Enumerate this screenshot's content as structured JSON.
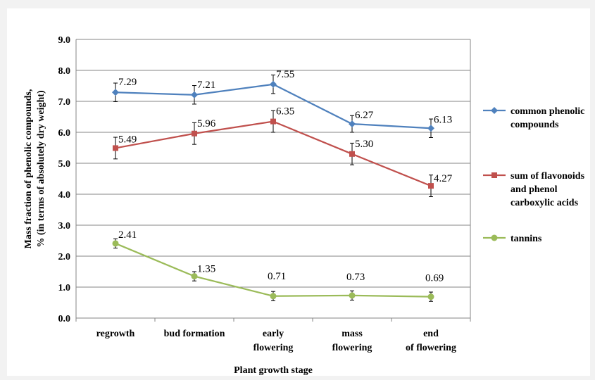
{
  "chart_data": {
    "type": "line",
    "categories": [
      [
        "regrowth"
      ],
      [
        "bud formation"
      ],
      [
        "early",
        "flowering"
      ],
      [
        "mass",
        "flowering"
      ],
      [
        "end",
        "of flowering"
      ]
    ],
    "series": [
      {
        "name": [
          "common phenolic",
          "compounds"
        ],
        "values": [
          7.29,
          7.21,
          7.55,
          6.27,
          6.13
        ],
        "errors": [
          0.3,
          0.3,
          0.3,
          0.27,
          0.3
        ],
        "color": "#4f81bd",
        "marker": "diamond",
        "labels": [
          "7.29",
          "7.21",
          "7.55",
          "6.27",
          "6.13"
        ]
      },
      {
        "name": [
          "sum of flavonoids",
          "and phenol",
          "carboxylic acids"
        ],
        "values": [
          5.49,
          5.96,
          6.35,
          5.3,
          4.27
        ],
        "errors": [
          0.35,
          0.35,
          0.35,
          0.35,
          0.35
        ],
        "color": "#c0504d",
        "marker": "square",
        "labels": [
          "5.49",
          "5.96",
          "6.35",
          "5.30",
          "4.27"
        ]
      },
      {
        "name": [
          "tannins"
        ],
        "values": [
          2.41,
          1.35,
          0.71,
          0.73,
          0.69
        ],
        "errors": [
          0.15,
          0.15,
          0.15,
          0.15,
          0.15
        ],
        "color": "#9bbb59",
        "marker": "circle",
        "labels": [
          "2.41",
          "1.35",
          "0.71",
          "0.73",
          "0.69"
        ]
      }
    ],
    "ylim": [
      0,
      9
    ],
    "yticks": [
      "0.0",
      "1.0",
      "2.0",
      "3.0",
      "4.0",
      "5.0",
      "6.0",
      "7.0",
      "8.0",
      "9.0"
    ],
    "xlabel": "Plant growth stage",
    "ylabel": [
      "Mass fraction of phenolic compounds,",
      "% (in terms of absolutely dry weight)"
    ],
    "grid": true,
    "legend_position": "right"
  }
}
